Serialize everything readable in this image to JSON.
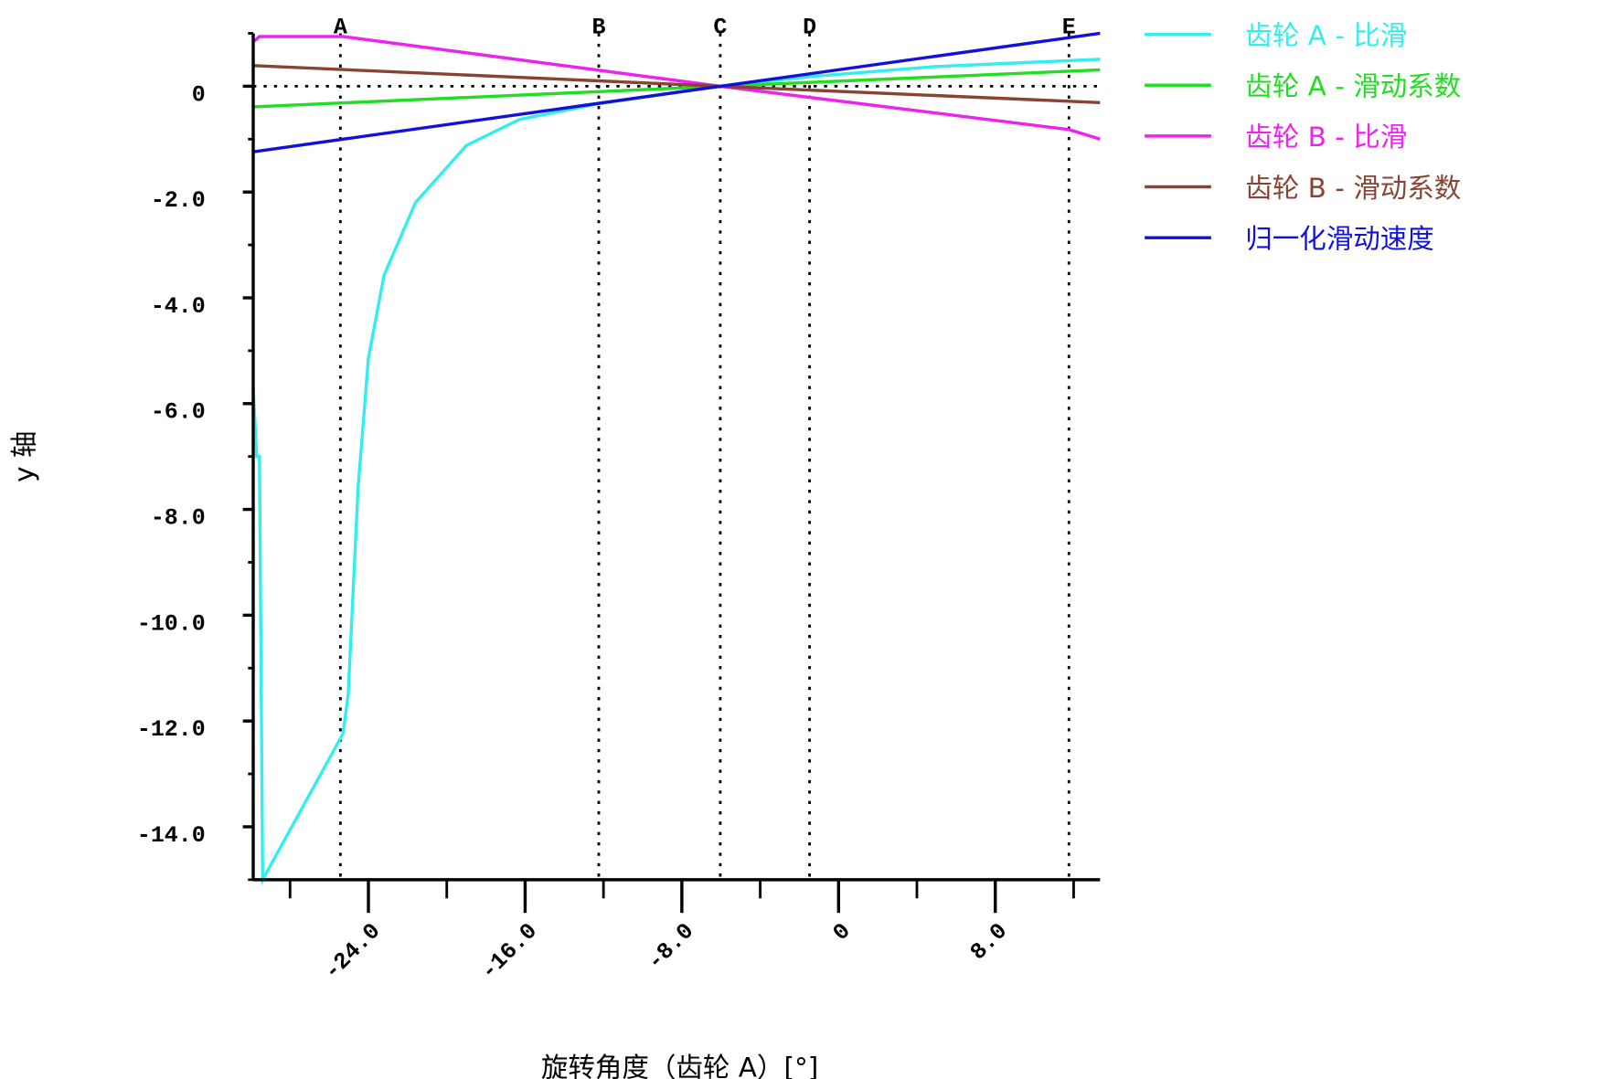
{
  "chart_data": {
    "type": "line",
    "x_label": "旋转角度（齿轮 A）[°]",
    "y_label": "y 轴",
    "xlim": [
      -29.88,
      13.35
    ],
    "ylim": [
      -15,
      1
    ],
    "xticks": [
      {
        "value": -24,
        "label": "-24.0"
      },
      {
        "value": -16,
        "label": "-16.0"
      },
      {
        "value": -8,
        "label": "-8.0"
      },
      0,
      {
        "value": 8,
        "label": "8.0"
      }
    ],
    "yticks": [
      0,
      {
        "value": -2,
        "label": "-2.0"
      },
      {
        "value": -4,
        "label": "-4.0"
      },
      {
        "value": -6,
        "label": "-6.0"
      },
      {
        "value": -8,
        "label": "-8.0"
      },
      {
        "value": -10,
        "label": "-10.0"
      },
      {
        "value": -12,
        "label": "-12.0"
      },
      {
        "value": -14,
        "label": "-14.0"
      }
    ],
    "markers": [
      {
        "label": "A",
        "x": -25.43
      },
      {
        "label": "B",
        "x": -12.24
      },
      {
        "label": "C",
        "x": -6.04
      },
      {
        "label": "D",
        "x": -1.48
      },
      {
        "label": "E",
        "x": 11.76
      }
    ],
    "series": [
      {
        "name": "齿轮 A - 比滑",
        "color": "#33eeee",
        "x": [
          -29.88,
          -29.7,
          -29.56,
          -29.4,
          -25.3,
          -25.03,
          -24.53,
          -24,
          -23.2,
          -21.6,
          -19,
          -16.3,
          -12.24,
          -6.04,
          -1.48,
          4.88,
          13.35
        ],
        "values": [
          -5.73,
          -7.0,
          -7.0,
          -15,
          -12.24,
          -11.5,
          -7.6,
          -5.14,
          -3.57,
          -2.2,
          -1.12,
          -0.63,
          -0.33,
          0,
          0.18,
          0.37,
          0.51
        ]
      },
      {
        "name": "齿轮 A - 滑动系数",
        "color": "#22dd22",
        "x": [
          -29.88,
          -6.04,
          13.35
        ],
        "values": [
          -0.39,
          0,
          0.31
        ]
      },
      {
        "name": "齿轮 B - 比滑",
        "color": "#ee22ee",
        "x": [
          -29.88,
          -29.56,
          -25.3,
          -6.04,
          11.76,
          13.35
        ],
        "values": [
          0.84,
          0.94,
          0.94,
          0,
          -0.82,
          -1.0
        ]
      },
      {
        "name": "齿轮 B - 滑动系数",
        "color": "#884433",
        "x": [
          -29.88,
          -6.04,
          13.35
        ],
        "values": [
          0.39,
          0,
          -0.31
        ]
      },
      {
        "name": "归一化滑动速度",
        "color": "#1111dd",
        "x": [
          -29.88,
          -6.04,
          13.35
        ],
        "values": [
          -1.24,
          0,
          1.0
        ]
      }
    ]
  }
}
